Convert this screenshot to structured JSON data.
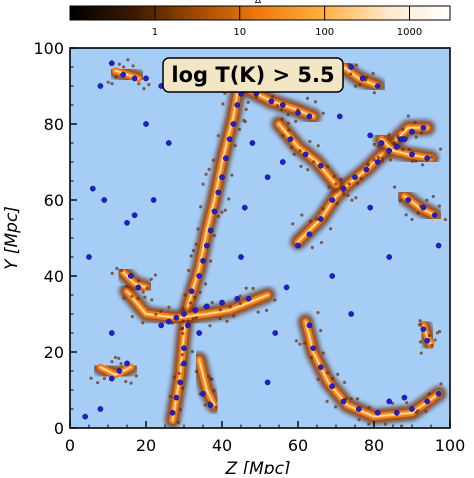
{
  "chart_data": {
    "type": "heatmap",
    "title": "",
    "annotation": "log T(K) > 5.5",
    "xlabel": "Z [Mpc]",
    "ylabel": "Y [Mpc]",
    "xlim": [
      0,
      100
    ],
    "ylim": [
      0,
      100
    ],
    "x_ticks": [
      "0",
      "20",
      "40",
      "60",
      "80",
      "100"
    ],
    "y_ticks": [
      "0",
      "20",
      "40",
      "60",
      "80",
      "100"
    ],
    "x_tick_values": [
      0,
      20,
      40,
      60,
      80,
      100
    ],
    "y_tick_values": [
      0,
      20,
      40,
      60,
      80,
      100
    ],
    "grid": false,
    "background_color": "#a6cdf5",
    "point_color": "#1f1fd6",
    "colorbar": {
      "label": "Δ",
      "scale": "log",
      "range": [
        0.1,
        3000
      ],
      "ticks": [
        "1",
        "10",
        "100",
        "1000"
      ],
      "tick_values": [
        1,
        10,
        100,
        1000
      ],
      "colors": [
        "#000000",
        "#3a1a00",
        "#a04a00",
        "#f07a10",
        "#ffb040",
        "#ffe8c8",
        "#ffffff"
      ]
    },
    "filaments": [
      {
        "points": [
          [
            27,
            2
          ],
          [
            29,
            14
          ],
          [
            30,
            25
          ],
          [
            31,
            32
          ],
          [
            34,
            42
          ],
          [
            36,
            52
          ],
          [
            38,
            60
          ],
          [
            40,
            70
          ],
          [
            43,
            82
          ],
          [
            44,
            88
          ]
        ]
      },
      {
        "points": [
          [
            15,
            36
          ],
          [
            20,
            30
          ],
          [
            28,
            29
          ],
          [
            36,
            30
          ],
          [
            42,
            31
          ],
          [
            47,
            33
          ],
          [
            52,
            35
          ]
        ]
      },
      {
        "points": [
          [
            62,
            28
          ],
          [
            64,
            20
          ],
          [
            68,
            12
          ],
          [
            73,
            6
          ],
          [
            80,
            3
          ],
          [
            90,
            4
          ],
          [
            97,
            9
          ]
        ]
      },
      {
        "points": [
          [
            60,
            49
          ],
          [
            66,
            55
          ],
          [
            70,
            61
          ],
          [
            73,
            64
          ],
          [
            78,
            68
          ],
          [
            84,
            74
          ],
          [
            89,
            79
          ],
          [
            94,
            79
          ]
        ]
      },
      {
        "points": [
          [
            82,
            76
          ],
          [
            85,
            73
          ],
          [
            89,
            72
          ],
          [
            95,
            71
          ]
        ]
      },
      {
        "points": [
          [
            47,
            89
          ],
          [
            53,
            86
          ],
          [
            59,
            84
          ],
          [
            64,
            82
          ]
        ]
      },
      {
        "points": [
          [
            55,
            80
          ],
          [
            60,
            74
          ],
          [
            65,
            70
          ],
          [
            70,
            64
          ]
        ]
      },
      {
        "points": [
          [
            72,
            95
          ],
          [
            76,
            92
          ],
          [
            81,
            90
          ]
        ]
      },
      {
        "points": [
          [
            34,
            18
          ],
          [
            36,
            10
          ],
          [
            38,
            6
          ]
        ]
      },
      {
        "points": [
          [
            8,
            16
          ],
          [
            12,
            14
          ],
          [
            16,
            16
          ]
        ]
      },
      {
        "points": [
          [
            14,
            41
          ],
          [
            17,
            38
          ],
          [
            20,
            37
          ]
        ]
      },
      {
        "points": [
          [
            88,
            61
          ],
          [
            92,
            58
          ],
          [
            96,
            56
          ]
        ]
      },
      {
        "points": [
          [
            12,
            94
          ],
          [
            15,
            93
          ],
          [
            18,
            92
          ]
        ]
      },
      {
        "points": [
          [
            93,
            27
          ],
          [
            94,
            24
          ],
          [
            95,
            22
          ]
        ]
      }
    ],
    "halos": [
      [
        28,
        29
      ],
      [
        26,
        28
      ],
      [
        30,
        30
      ],
      [
        24,
        27
      ],
      [
        33,
        31
      ],
      [
        36,
        32
      ],
      [
        40,
        33
      ],
      [
        44,
        34
      ],
      [
        47,
        34
      ],
      [
        31,
        27
      ],
      [
        34,
        25
      ],
      [
        30,
        21
      ],
      [
        30,
        17
      ],
      [
        29,
        12
      ],
      [
        28,
        8
      ],
      [
        27,
        4
      ],
      [
        32,
        36
      ],
      [
        34,
        40
      ],
      [
        35,
        44
      ],
      [
        36,
        48
      ],
      [
        37,
        52
      ],
      [
        38,
        57
      ],
      [
        39,
        62
      ],
      [
        40,
        66
      ],
      [
        41,
        71
      ],
      [
        42,
        76
      ],
      [
        43,
        80
      ],
      [
        44,
        85
      ],
      [
        45,
        88
      ],
      [
        60,
        48
      ],
      [
        63,
        51
      ],
      [
        66,
        55
      ],
      [
        69,
        60
      ],
      [
        72,
        63
      ],
      [
        75,
        66
      ],
      [
        78,
        68
      ],
      [
        81,
        70
      ],
      [
        84,
        73
      ],
      [
        87,
        76
      ],
      [
        90,
        78
      ],
      [
        93,
        79
      ],
      [
        86,
        74
      ],
      [
        88,
        76
      ],
      [
        82,
        75
      ],
      [
        90,
        72
      ],
      [
        94,
        71
      ],
      [
        79,
        77
      ],
      [
        49,
        88
      ],
      [
        53,
        86
      ],
      [
        56,
        85
      ],
      [
        60,
        83
      ],
      [
        63,
        82
      ],
      [
        58,
        76
      ],
      [
        62,
        72
      ],
      [
        66,
        69
      ],
      [
        63,
        27
      ],
      [
        64,
        21
      ],
      [
        66,
        16
      ],
      [
        69,
        11
      ],
      [
        72,
        7
      ],
      [
        76,
        5
      ],
      [
        81,
        4
      ],
      [
        86,
        4
      ],
      [
        90,
        5
      ],
      [
        94,
        7
      ],
      [
        97,
        9
      ],
      [
        84,
        7
      ],
      [
        88,
        8
      ],
      [
        13,
        15
      ],
      [
        11,
        13
      ],
      [
        15,
        17
      ],
      [
        16,
        40
      ],
      [
        18,
        37
      ],
      [
        8,
        5
      ],
      [
        15,
        54
      ],
      [
        17,
        56
      ],
      [
        6,
        63
      ],
      [
        9,
        60
      ],
      [
        5,
        45
      ],
      [
        20,
        92
      ],
      [
        24,
        90
      ],
      [
        14,
        93
      ],
      [
        17,
        92
      ],
      [
        11,
        96
      ],
      [
        35,
        9
      ],
      [
        37,
        6
      ],
      [
        52,
        66
      ],
      [
        56,
        70
      ],
      [
        74,
        95
      ],
      [
        77,
        92
      ],
      [
        81,
        90
      ],
      [
        93,
        26
      ],
      [
        94,
        23
      ],
      [
        89,
        60
      ],
      [
        93,
        58
      ],
      [
        96,
        56
      ],
      [
        97,
        48
      ],
      [
        4,
        3
      ],
      [
        8,
        90
      ],
      [
        22,
        60
      ],
      [
        45,
        45
      ],
      [
        54,
        25
      ],
      [
        69,
        40
      ],
      [
        74,
        30
      ],
      [
        52,
        12
      ],
      [
        79,
        58
      ],
      [
        60,
        94
      ],
      [
        26,
        75
      ],
      [
        20,
        80
      ],
      [
        46,
        58
      ],
      [
        84,
        45
      ],
      [
        11,
        25
      ],
      [
        57,
        37
      ],
      [
        48,
        75
      ],
      [
        71,
        82
      ]
    ]
  }
}
